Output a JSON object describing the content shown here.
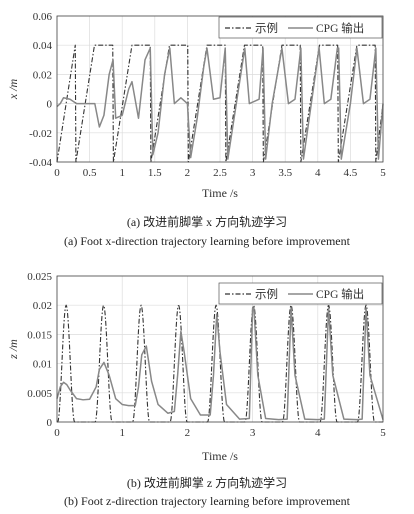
{
  "chart_data": [
    {
      "type": "line",
      "xlabel": "Time /s",
      "ylabel": "x /m",
      "xlim": [
        0,
        5
      ],
      "ylim": [
        -0.04,
        0.06
      ],
      "xticks": [
        "0",
        "0.5",
        "1",
        "1.5",
        "2",
        "2.5",
        "3",
        "3.5",
        "4",
        "4.5",
        "5"
      ],
      "yticks": [
        "-0.04",
        "-0.02",
        "0",
        "0.02",
        "0.04",
        "0.06"
      ],
      "grid": true,
      "legend_position": "top-right",
      "caption_cn": "(a) 改进前脚掌 x 方向轨迹学习",
      "caption_en": "(a) Foot x-direction trajectory learning before improvement",
      "period": 0.575,
      "series": [
        {
          "name": "示例",
          "style": "dash-dot",
          "color": "#333333",
          "x": [
            0,
            0.28,
            0.29,
            0.575,
            0.855,
            0.865,
            1.15,
            1.43,
            1.44,
            1.725,
            2.005,
            2.015,
            2.3,
            2.58,
            2.59,
            2.875,
            3.155,
            3.165,
            3.45,
            3.73,
            3.74,
            4.025,
            4.305,
            4.315,
            4.6,
            4.88,
            4.89,
            5.0
          ],
          "y": [
            -0.04,
            0.04,
            -0.04,
            0.04,
            0.04,
            -0.04,
            0.04,
            0.04,
            -0.04,
            0.04,
            0.04,
            -0.04,
            0.04,
            0.04,
            -0.04,
            0.04,
            0.04,
            -0.04,
            0.04,
            0.04,
            -0.04,
            0.04,
            0.04,
            -0.04,
            0.04,
            0.04,
            -0.04,
            0.0
          ]
        },
        {
          "name": "CPG 输出",
          "style": "solid",
          "color": "#888888",
          "x": [
            0,
            0.05,
            0.1,
            0.2,
            0.3,
            0.4,
            0.5,
            0.58,
            0.65,
            0.72,
            0.8,
            0.86,
            0.9,
            1.0,
            1.1,
            1.15,
            1.25,
            1.35,
            1.43,
            1.47,
            1.55,
            1.65,
            1.73,
            1.8,
            1.9,
            2.0,
            2.05,
            2.15,
            2.25,
            2.3,
            2.4,
            2.5,
            2.58,
            2.62,
            2.75,
            2.88,
            2.95,
            3.1,
            3.16,
            3.2,
            3.3,
            3.45,
            3.55,
            3.65,
            3.74,
            3.78,
            3.9,
            4.02,
            4.1,
            4.2,
            4.3,
            4.32,
            4.36,
            4.5,
            4.6,
            4.7,
            4.8,
            4.89,
            4.93,
            5.0
          ],
          "y": [
            -0.002,
            0.0,
            0.004,
            0.003,
            0.0,
            0.0,
            0.0,
            0.0,
            -0.016,
            -0.008,
            0.02,
            0.03,
            -0.01,
            -0.008,
            0.01,
            0.015,
            -0.01,
            0.03,
            0.038,
            -0.035,
            -0.02,
            0.02,
            0.038,
            0.0,
            0.004,
            0.0,
            -0.037,
            -0.01,
            0.025,
            0.038,
            0.003,
            0.004,
            0.038,
            -0.038,
            0.0,
            0.038,
            0.0,
            0.003,
            0.038,
            -0.038,
            0.0,
            0.038,
            0.0,
            0.003,
            0.038,
            -0.038,
            0.0,
            0.038,
            0.0,
            0.003,
            0.038,
            0.038,
            -0.038,
            0.0,
            0.038,
            0.0,
            0.003,
            0.038,
            -0.038,
            0.0
          ]
        }
      ]
    },
    {
      "type": "line",
      "xlabel": "Time /s",
      "ylabel": "z /m",
      "xlim": [
        0,
        5
      ],
      "ylim": [
        0,
        0.025
      ],
      "xticks": [
        "0",
        "1",
        "2",
        "3",
        "4",
        "5"
      ],
      "yticks": [
        "0",
        "0.005",
        "0.01",
        "0.015",
        "0.02",
        "0.025"
      ],
      "grid": true,
      "legend_position": "top-right",
      "caption_cn": "(b) 改进前脚掌 z 方向轨迹学习",
      "caption_en": "(b) Foot z-direction trajectory learning before improvement",
      "series": [
        {
          "name": "示例",
          "style": "dash-dot",
          "color": "#333333",
          "pulse_centers": [
            0.14,
            0.715,
            1.29,
            1.865,
            2.44,
            3.015,
            3.59,
            4.165,
            4.74
          ],
          "pulse_peak": 0.02,
          "pulse_halfwidth": 0.13,
          "baseline": 0.0
        },
        {
          "name": "CPG 输出",
          "style": "solid",
          "color": "#888888",
          "x": [
            0,
            0.05,
            0.1,
            0.15,
            0.2,
            0.3,
            0.4,
            0.5,
            0.6,
            0.65,
            0.72,
            0.8,
            0.9,
            1.0,
            1.1,
            1.2,
            1.25,
            1.3,
            1.37,
            1.45,
            1.55,
            1.7,
            1.8,
            1.85,
            1.9,
            1.95,
            2.05,
            2.2,
            2.35,
            2.4,
            2.45,
            2.5,
            2.6,
            2.8,
            2.95,
            3.0,
            3.02,
            3.08,
            3.2,
            3.4,
            3.53,
            3.59,
            3.65,
            3.8,
            4.0,
            4.1,
            4.165,
            4.23,
            4.4,
            4.6,
            4.68,
            4.74,
            4.8,
            5.0
          ],
          "y": [
            0.004,
            0.006,
            0.0068,
            0.0064,
            0.0055,
            0.004,
            0.0038,
            0.0039,
            0.006,
            0.009,
            0.0102,
            0.008,
            0.004,
            0.003,
            0.0028,
            0.0028,
            0.006,
            0.0115,
            0.013,
            0.007,
            0.003,
            0.0015,
            0.0018,
            0.008,
            0.0155,
            0.012,
            0.004,
            0.0012,
            0.0012,
            0.008,
            0.0185,
            0.012,
            0.003,
            0.0005,
            0.0006,
            0.0195,
            0.0195,
            0.008,
            0.0006,
            0.0004,
            0.0005,
            0.0195,
            0.008,
            0.0005,
            0.0004,
            0.0005,
            0.0195,
            0.008,
            0.0005,
            0.0004,
            0.0005,
            0.0195,
            0.008,
            0.0004
          ]
        }
      ]
    }
  ]
}
